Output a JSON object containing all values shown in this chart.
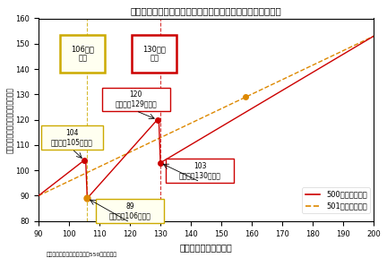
{
  "title": "（図表４）配偶者の年収に対する世帯の可処分所得の増加額",
  "xlabel": "配偶者の年収（万円）",
  "ylabel": "世帯の可処分所得の増加額（万円）",
  "note": "（注）主たる生計者の年収が550万円の場合",
  "xlim": [
    90,
    200
  ],
  "ylim": [
    80,
    160
  ],
  "xticks": [
    90,
    100,
    110,
    120,
    130,
    140,
    150,
    160,
    170,
    180,
    190,
    200
  ],
  "yticks": [
    80,
    90,
    100,
    110,
    120,
    130,
    140,
    150,
    160
  ],
  "line500_color": "#cc0000",
  "line501_color": "#dd8800",
  "wall106_border": "#ccaa00",
  "wall130_border": "#cc0000",
  "wall106_fill": "#fffff0",
  "wall130_fill": "#ffffff",
  "legend_500": "500人以下の企業",
  "legend_501": "501人以上の企業",
  "wall106_label": "106万円\nの壁",
  "wall130_label": "130万円\nの壁",
  "ann1_label": "104\n（配偶者105万円）",
  "ann1_x": 105,
  "ann1_y": 104,
  "ann2_label": "89\n（配偶者106万円）",
  "ann2_x": 106,
  "ann2_y": 89,
  "ann3_label": "120\n（配偶者129万円）",
  "ann3_x": 129,
  "ann3_y": 120,
  "ann4_label": "103\n（配偶者130万円）",
  "ann4_x": 130,
  "ann4_y": 103
}
